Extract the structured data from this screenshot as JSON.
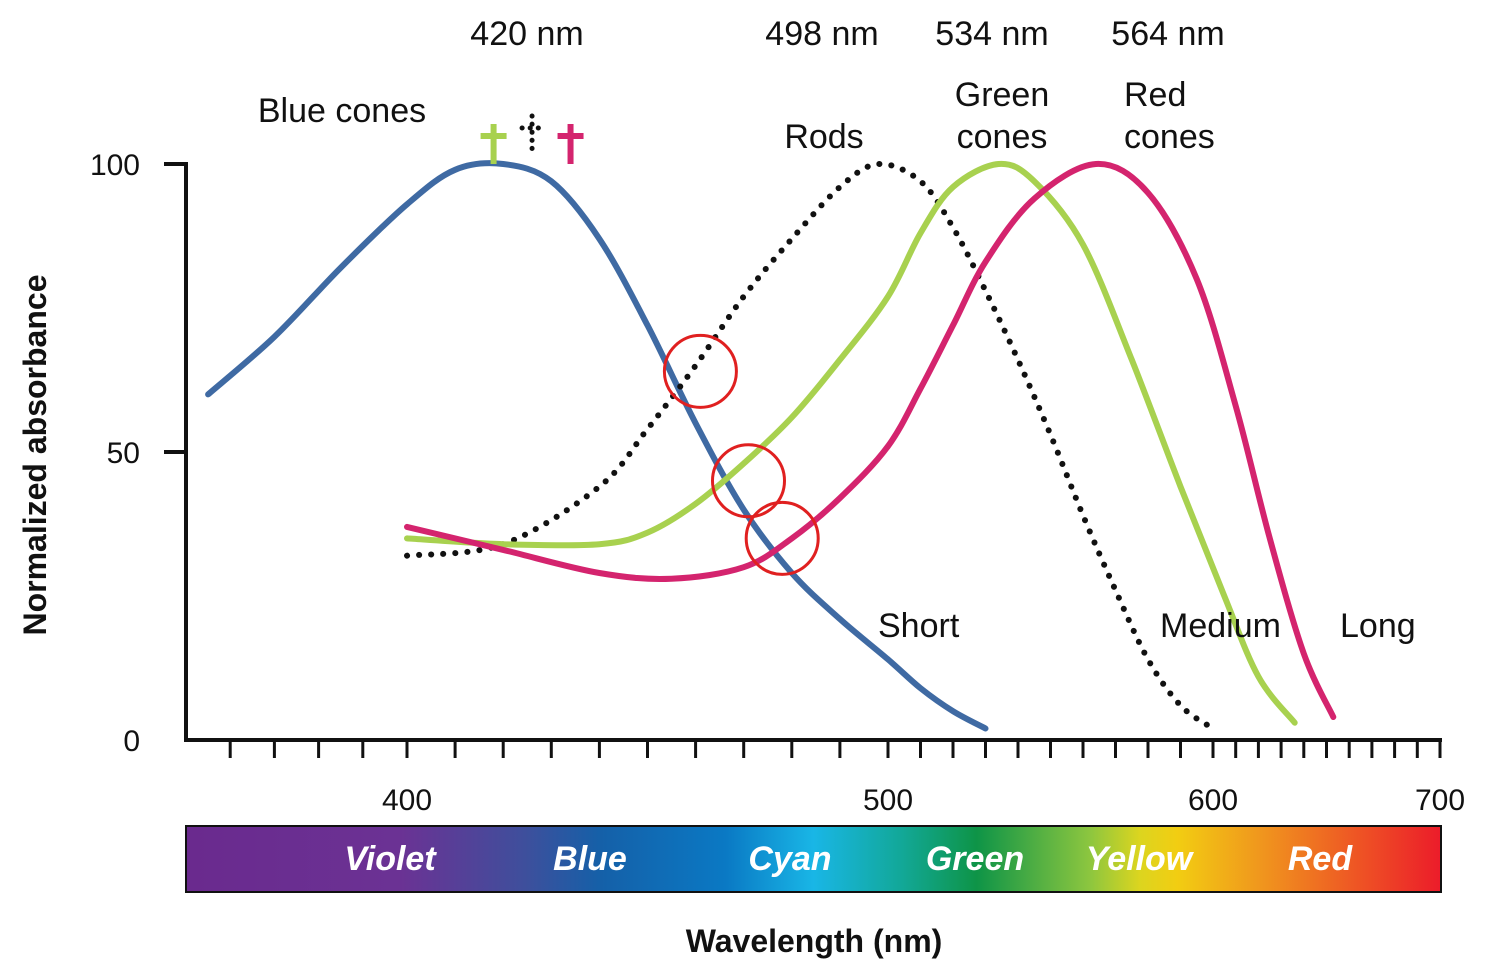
{
  "chart_data": {
    "type": "line",
    "xlabel": "Wavelength (nm)",
    "ylabel": "Normalized absorbance",
    "x_ticks": [
      "400",
      "500",
      "600",
      "700"
    ],
    "y_ticks": [
      "0",
      "50",
      "100"
    ],
    "peak_labels": [
      "420 nm",
      "498 nm",
      "534 nm",
      "564 nm"
    ],
    "curve_labels": {
      "blue": "Blue cones",
      "rods": "Rods",
      "green_1": "Green",
      "green_2": "cones",
      "red_1": "Red",
      "red_2": "cones"
    },
    "range_labels": {
      "short": "Short",
      "medium": "Medium",
      "long": "Long"
    },
    "spectrum_band": [
      "Violet",
      "Blue",
      "Cyan",
      "Green",
      "Yellow",
      "Red"
    ],
    "colors": {
      "blue": "#3f6aa3",
      "green": "#a8d14f",
      "red": "#d4246e",
      "rods": "#111111",
      "highlight": "#e02020"
    },
    "series": [
      {
        "id": "blue",
        "x": [
          355,
          370,
          385,
          400,
          410,
          420,
          430,
          440,
          450,
          460,
          470,
          480,
          490,
          500,
          510,
          520,
          530
        ],
        "y": [
          60,
          70,
          82,
          93,
          99,
          100,
          97,
          87,
          72,
          55,
          40,
          29,
          21,
          14,
          9,
          5,
          2
        ]
      },
      {
        "id": "rods",
        "x": [
          400,
          420,
          440,
          450,
          460,
          470,
          480,
          490,
          498,
          510,
          520,
          530,
          540,
          550,
          560,
          570,
          580,
          590,
          600
        ],
        "y": [
          32,
          34,
          44,
          54,
          65,
          77,
          87,
          96,
          100,
          97,
          89,
          78,
          66,
          53,
          39,
          26,
          14,
          6,
          2
        ]
      },
      {
        "id": "green",
        "x": [
          400,
          420,
          440,
          450,
          460,
          470,
          480,
          490,
          500,
          510,
          520,
          534,
          545,
          560,
          575,
          590,
          605,
          620,
          636
        ],
        "y": [
          35,
          34,
          34,
          36,
          41,
          48,
          56,
          66,
          77,
          88,
          96,
          100,
          97,
          86,
          66,
          44,
          25,
          11,
          3
        ]
      },
      {
        "id": "red",
        "x": [
          400,
          420,
          440,
          455,
          470,
          480,
          490,
          500,
          510,
          520,
          530,
          545,
          564,
          580,
          595,
          610,
          625,
          640,
          653
        ],
        "y": [
          37,
          33,
          29,
          28,
          30,
          35,
          42,
          51,
          61,
          72,
          83,
          94,
          100,
          95,
          80,
          58,
          35,
          15,
          4
        ]
      }
    ],
    "highlights": [
      {
        "x": 461,
        "y": 64
      },
      {
        "x": 471,
        "y": 45
      },
      {
        "x": 478,
        "y": 35
      }
    ],
    "peak_markers": [
      {
        "series": "green",
        "x": 418
      },
      {
        "series": "rods",
        "x": 426
      },
      {
        "series": "red",
        "x": 434
      }
    ],
    "xlim": [
      350,
      700
    ],
    "ylim": [
      0,
      100
    ],
    "grid": false
  }
}
